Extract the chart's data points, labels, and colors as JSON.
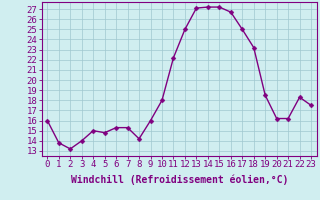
{
  "x": [
    0,
    1,
    2,
    3,
    4,
    5,
    6,
    7,
    8,
    9,
    10,
    11,
    12,
    13,
    14,
    15,
    16,
    17,
    18,
    19,
    20,
    21,
    22,
    23
  ],
  "y": [
    16,
    13.8,
    13.2,
    14,
    15,
    14.8,
    15.3,
    15.3,
    14.2,
    16,
    18,
    22.2,
    25,
    27.1,
    27.2,
    27.2,
    26.7,
    25,
    23.2,
    18.5,
    16.2,
    16.2,
    18.3,
    17.5
  ],
  "line_color": "#800080",
  "marker_color": "#800080",
  "bg_color": "#d0eef0",
  "plot_bg_color": "#d0eef0",
  "grid_color": "#a0c8d0",
  "xlabel": "Windchill (Refroidissement éolien,°C)",
  "ylabel_ticks": [
    13,
    14,
    15,
    16,
    17,
    18,
    19,
    20,
    21,
    22,
    23,
    24,
    25,
    26,
    27
  ],
  "ylim": [
    12.5,
    27.7
  ],
  "xlim": [
    -0.5,
    23.5
  ],
  "xtick_labels": [
    "0",
    "1",
    "2",
    "3",
    "4",
    "5",
    "6",
    "7",
    "8",
    "9",
    "10",
    "11",
    "12",
    "13",
    "14",
    "15",
    "16",
    "17",
    "18",
    "19",
    "20",
    "21",
    "22",
    "23"
  ],
  "tick_color": "#800080",
  "label_color": "#800080",
  "xlabel_fontsize": 7,
  "tick_fontsize": 6.5,
  "marker_size": 2.5,
  "line_width": 1.0,
  "spine_color": "#800080"
}
